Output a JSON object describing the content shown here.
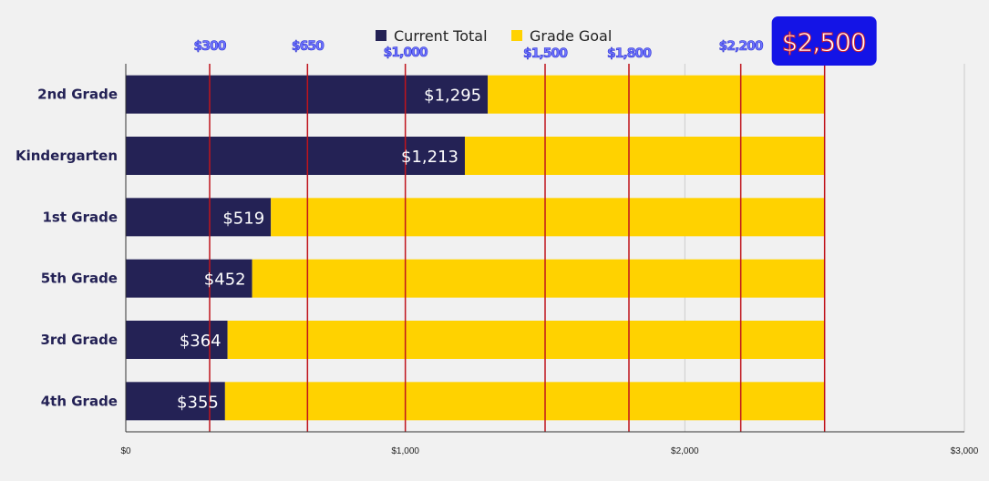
{
  "chart_data": {
    "type": "bar",
    "orientation": "horizontal",
    "stacked": true,
    "categories": [
      "2nd Grade",
      "Kindergarten",
      "1st Grade",
      "5th Grade",
      "3rd Grade",
      "4th Grade"
    ],
    "series": [
      {
        "name": "Current Total",
        "color": "#242255",
        "values": [
          1295,
          1213,
          519,
          452,
          364,
          355
        ],
        "labels": [
          "$1,295",
          "$1,213",
          "$519",
          "$452",
          "$364",
          "$355"
        ]
      },
      {
        "name": "Grade Goal",
        "color": "#ffd200",
        "values": [
          1205,
          1287,
          1981,
          2048,
          2136,
          2145
        ]
      }
    ],
    "xlim": [
      0,
      3000
    ],
    "x_ticks": [
      0,
      1000,
      2000,
      3000
    ],
    "x_tick_labels": [
      "$0",
      "$1,000",
      "$2,000",
      "$3,000"
    ],
    "grid": true,
    "legend_position": "top",
    "milestones": {
      "values": [
        300,
        650,
        1000,
        1500,
        1800,
        2200,
        2500
      ],
      "labels": [
        "$300",
        "$650",
        "$1,000",
        "$1,500",
        "$1,800",
        "$2,200",
        "$2,500"
      ],
      "line_color": "#c0141c",
      "label_color": "#6f74ff"
    },
    "goal_badge": {
      "label": "$2,500",
      "background": "#1414e6"
    }
  }
}
